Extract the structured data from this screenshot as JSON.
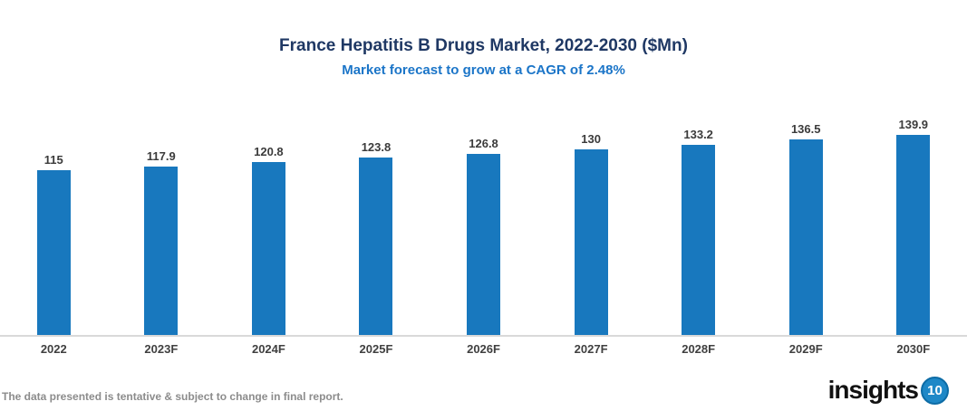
{
  "header": {
    "title": "France Hepatitis B Drugs Market, 2022-2030 ($Mn)",
    "subtitle": "Market forecast to grow at a CAGR of 2.48%"
  },
  "footer": {
    "footnote": "The data presented is tentative & subject to change in final report.",
    "logo_text": "insights",
    "logo_badge": "10"
  },
  "colors": {
    "bar": "#1878BE",
    "title": "#1F3864",
    "subtitle": "#1B75C8",
    "axis_line": "#D9D9D9",
    "value_label": "#3B3B3B",
    "x_tick_label": "#404040",
    "footnote": "#8C8C8C",
    "logo_badge_fill": "#1E88C7",
    "logo_badge_rim": "#0D6CA6"
  },
  "chart_data": {
    "type": "bar",
    "title": "France Hepatitis B Drugs Market, 2022-2030 ($Mn)",
    "subtitle": "Market forecast to grow at a CAGR of 2.48%",
    "categories": [
      "2022",
      "2023F",
      "2024F",
      "2025F",
      "2026F",
      "2027F",
      "2028F",
      "2029F",
      "2030F"
    ],
    "values": [
      115,
      117.9,
      120.8,
      123.8,
      126.8,
      130,
      133.2,
      136.5,
      139.9
    ],
    "value_labels": [
      "115",
      "117.9",
      "120.8",
      "123.8",
      "126.8",
      "130",
      "133.2",
      "136.5",
      "139.9"
    ],
    "xlabel": "",
    "ylabel": "",
    "ylim": [
      0,
      235
    ],
    "grid": false,
    "legend": "none",
    "bar_color": "#1878BE"
  }
}
